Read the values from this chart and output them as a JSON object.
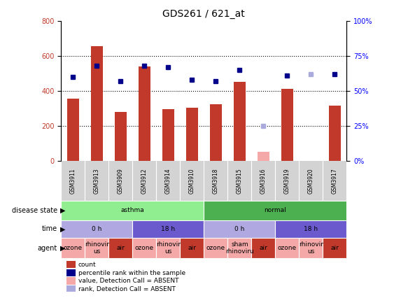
{
  "title": "GDS261 / 621_at",
  "samples": [
    "GSM3911",
    "GSM3913",
    "GSM3909",
    "GSM3912",
    "GSM3914",
    "GSM3910",
    "GSM3918",
    "GSM3915",
    "GSM3916",
    "GSM3919",
    "GSM3920",
    "GSM3917"
  ],
  "bar_values": [
    355,
    655,
    280,
    540,
    295,
    305,
    325,
    450,
    50,
    410,
    0,
    315
  ],
  "bar_absent": [
    false,
    false,
    false,
    false,
    false,
    false,
    false,
    false,
    true,
    false,
    true,
    false
  ],
  "rank_values": [
    60,
    68,
    57,
    68,
    67,
    58,
    57,
    65,
    25,
    61,
    62,
    62
  ],
  "rank_absent": [
    false,
    false,
    false,
    false,
    false,
    false,
    false,
    false,
    true,
    false,
    true,
    false
  ],
  "bar_color_present": "#c0392b",
  "bar_color_absent": "#f4a9a8",
  "rank_color_present": "#00008b",
  "rank_color_absent": "#aaaadd",
  "ylim_left": [
    0,
    800
  ],
  "ylim_right": [
    0,
    100
  ],
  "yticks_left": [
    0,
    200,
    400,
    600,
    800
  ],
  "yticks_right": [
    0,
    25,
    50,
    75,
    100
  ],
  "ytick_right_labels": [
    "0%",
    "25%",
    "50%",
    "75%",
    "100%"
  ],
  "disease_state_groups": [
    {
      "label": "asthma",
      "start": 0,
      "end": 6,
      "color": "#90ee90"
    },
    {
      "label": "normal",
      "start": 6,
      "end": 12,
      "color": "#4caf50"
    }
  ],
  "time_groups": [
    {
      "label": "0 h",
      "start": 0,
      "end": 3,
      "color": "#b0a8e0"
    },
    {
      "label": "18 h",
      "start": 3,
      "end": 6,
      "color": "#6a5acd"
    },
    {
      "label": "0 h",
      "start": 6,
      "end": 9,
      "color": "#b0a8e0"
    },
    {
      "label": "18 h",
      "start": 9,
      "end": 12,
      "color": "#6a5acd"
    }
  ],
  "agent_groups": [
    {
      "label": "ozone",
      "start": 0,
      "end": 1,
      "color": "#f4a9a8"
    },
    {
      "label": "rhinovir\nus",
      "start": 1,
      "end": 2,
      "color": "#f4a9a8"
    },
    {
      "label": "air",
      "start": 2,
      "end": 3,
      "color": "#c0392b"
    },
    {
      "label": "ozone",
      "start": 3,
      "end": 4,
      "color": "#f4a9a8"
    },
    {
      "label": "rhinovir\nus",
      "start": 4,
      "end": 5,
      "color": "#f4a9a8"
    },
    {
      "label": "air",
      "start": 5,
      "end": 6,
      "color": "#c0392b"
    },
    {
      "label": "ozone",
      "start": 6,
      "end": 7,
      "color": "#f4a9a8"
    },
    {
      "label": "sham\nrhinoviru",
      "start": 7,
      "end": 8,
      "color": "#f4a9a8"
    },
    {
      "label": "air",
      "start": 8,
      "end": 9,
      "color": "#c0392b"
    },
    {
      "label": "ozone",
      "start": 9,
      "end": 10,
      "color": "#f4a9a8"
    },
    {
      "label": "rhinovir\nus",
      "start": 10,
      "end": 11,
      "color": "#f4a9a8"
    },
    {
      "label": "air",
      "start": 11,
      "end": 12,
      "color": "#c0392b"
    }
  ],
  "legend_items": [
    {
      "label": "count",
      "color": "#c0392b"
    },
    {
      "label": "percentile rank within the sample",
      "color": "#00008b"
    },
    {
      "label": "value, Detection Call = ABSENT",
      "color": "#f4a9a8"
    },
    {
      "label": "rank, Detection Call = ABSENT",
      "color": "#aaaadd"
    }
  ],
  "row_labels": [
    "disease state",
    "time",
    "agent"
  ],
  "bar_width": 0.5,
  "names_bg": "#d3d3d3",
  "fig_bg": "#ffffff"
}
